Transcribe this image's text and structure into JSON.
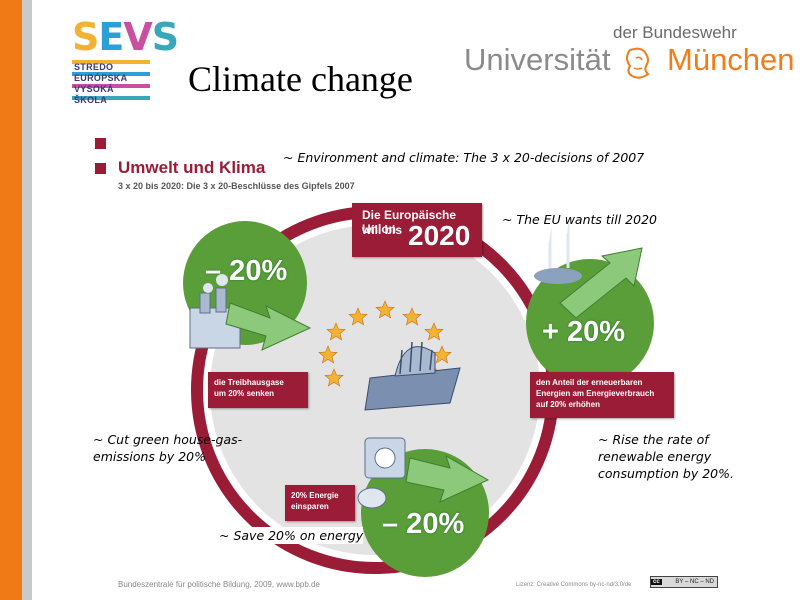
{
  "slide": {
    "title": "Climate change"
  },
  "logos": {
    "sevs": {
      "letters": [
        "S",
        "E",
        "V",
        "S"
      ],
      "lines": [
        "STREDO",
        "EURÓPSKA",
        "VYSOKÁ",
        "ŠKOLA"
      ],
      "colors": [
        "#f2b233",
        "#2c9fd6",
        "#c94fa0",
        "#3aa6b9"
      ]
    },
    "university": {
      "top": "der Bundeswehr",
      "left": "Universität",
      "right": "München",
      "brand_color": "#ef7d1a"
    }
  },
  "graphic": {
    "title": "Umwelt und Klima",
    "subtitle": "3 x 20 bis 2020: Die 3 x 20-Beschlüsse des Gipfels 2007",
    "eu_box": {
      "line1": "Die Europäische Union",
      "line2": "will bis",
      "year": "2020"
    },
    "percentages": {
      "left": "– 20%",
      "right": "+ 20%",
      "bottom": "– 20%"
    },
    "labels": {
      "left": [
        "die Treibhausgase",
        "um 20% senken"
      ],
      "right": [
        "den Anteil der erneuerbaren",
        "Energien am Energieverbrauch",
        "auf 20% erhöhen"
      ],
      "bottom": [
        "20% Energie",
        "einsparen"
      ]
    },
    "footer_left": "Bundeszentrale für politische Bildung, 2009, www.bpb.de",
    "footer_right": "Lizenz: Creative Commons by-nc-nd/3.0/de",
    "cc_badge": {
      "cc": "cc",
      "terms": "BY – NC – ND"
    },
    "colors": {
      "accent": "#9b1c36",
      "green": "#5a9e3a",
      "ring": "#9b1c36"
    }
  },
  "annotations": {
    "environment": "~ Environment  and climate:  The 3 x 20-decisions of 2007",
    "eu_wants": "~ The EU wants till 2020",
    "cut": [
      "~ Cut green house-gas-",
      "emissions by 20%"
    ],
    "rise": [
      "~ Rise the rate of",
      "renewable energy",
      "consumption by 20%."
    ],
    "save": "~ Save 20% on energy"
  }
}
